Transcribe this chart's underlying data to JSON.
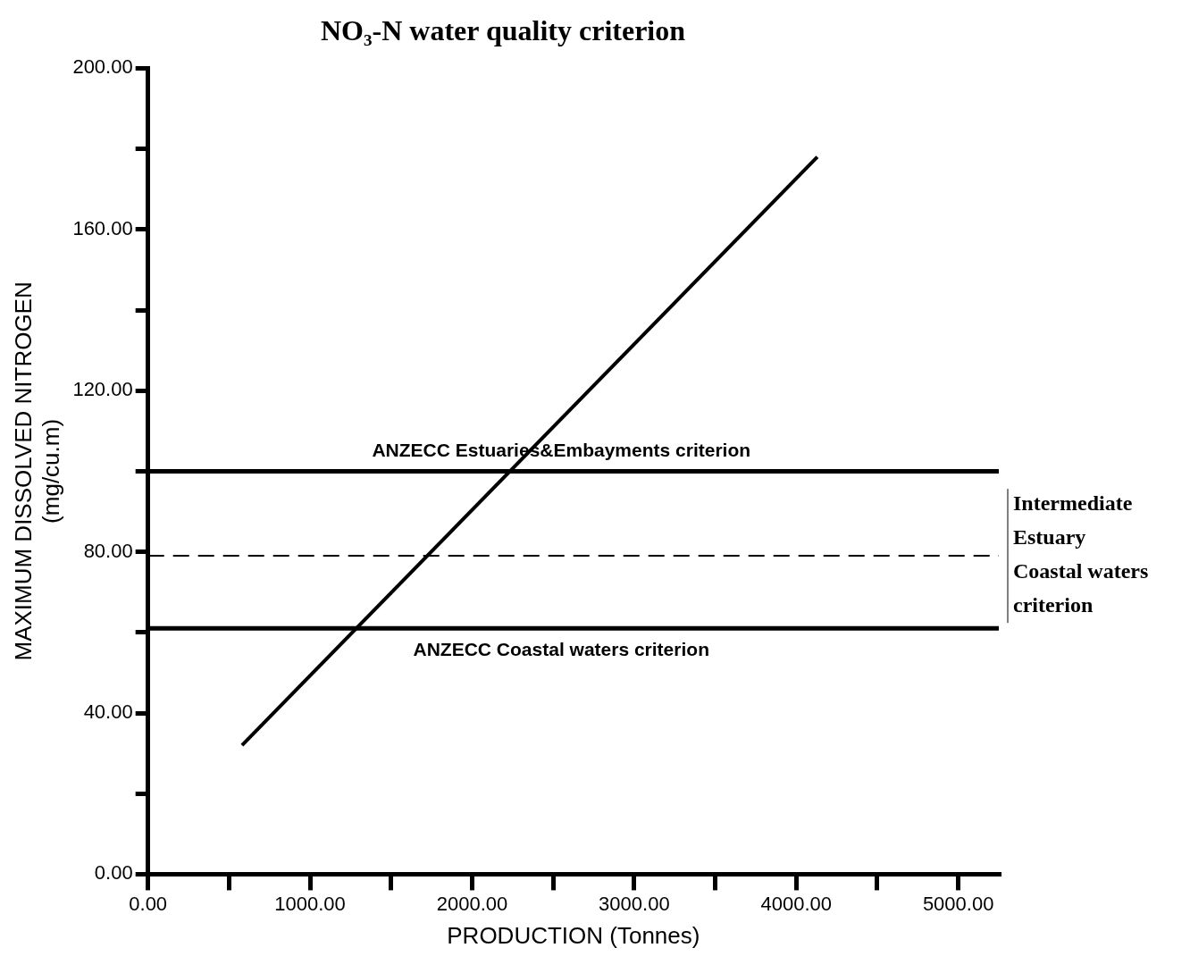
{
  "chart_data": {
    "type": "line",
    "title": "NO₃-N water quality criterion",
    "xlabel": "PRODUCTION (Tonnes)",
    "ylabel": "MAXIMUM DISSOLVED NITROGEN\n(mg/cu.m)",
    "x": [
      580,
      4130
    ],
    "series": [
      {
        "color": "#000000",
        "values": [
          32,
          178
        ]
      }
    ],
    "xlim": [
      0,
      5250
    ],
    "xticks": [
      {
        "value": 0,
        "label": "0.00"
      },
      {
        "value": 500,
        "label": null
      },
      {
        "value": 1000,
        "label": "1000.00"
      },
      {
        "value": 1500,
        "label": null
      },
      {
        "value": 2000,
        "label": "2000.00"
      },
      {
        "value": 2500,
        "label": null
      },
      {
        "value": 3000,
        "label": "3000.00"
      },
      {
        "value": 3500,
        "label": null
      },
      {
        "value": 4000,
        "label": "4000.00"
      },
      {
        "value": 4500,
        "label": null
      },
      {
        "value": 5000,
        "label": "5000.00"
      }
    ],
    "ylim": [
      0,
      200
    ],
    "yticks": [
      {
        "value": 0,
        "label": "0.00"
      },
      {
        "value": 20,
        "label": null
      },
      {
        "value": 40,
        "label": "40.00"
      },
      {
        "value": 60,
        "label": null
      },
      {
        "value": 80,
        "label": "80.00"
      },
      {
        "value": 100,
        "label": null
      },
      {
        "value": 120,
        "label": "120.00"
      },
      {
        "value": 140,
        "label": null
      },
      {
        "value": 160,
        "label": "160.00"
      },
      {
        "value": 180,
        "label": null
      },
      {
        "value": 200,
        "label": "200.00"
      }
    ],
    "ref_lines": [
      {
        "axis": "y",
        "value": 100,
        "label": "ANZECC Estuaries&Embayments criterion",
        "color": "#000000",
        "line_style": "solid"
      },
      {
        "axis": "y",
        "value": 79,
        "label": "Intermediate Estuary Coastal waters criterion",
        "color": "#000000",
        "line_style": "dashed"
      },
      {
        "axis": "y",
        "value": 61,
        "label": "ANZECC Coastal waters criterion",
        "color": "#000000",
        "line_style": "solid"
      }
    ],
    "grid": false,
    "legend": false,
    "marker": "none",
    "line_style": "solid"
  }
}
